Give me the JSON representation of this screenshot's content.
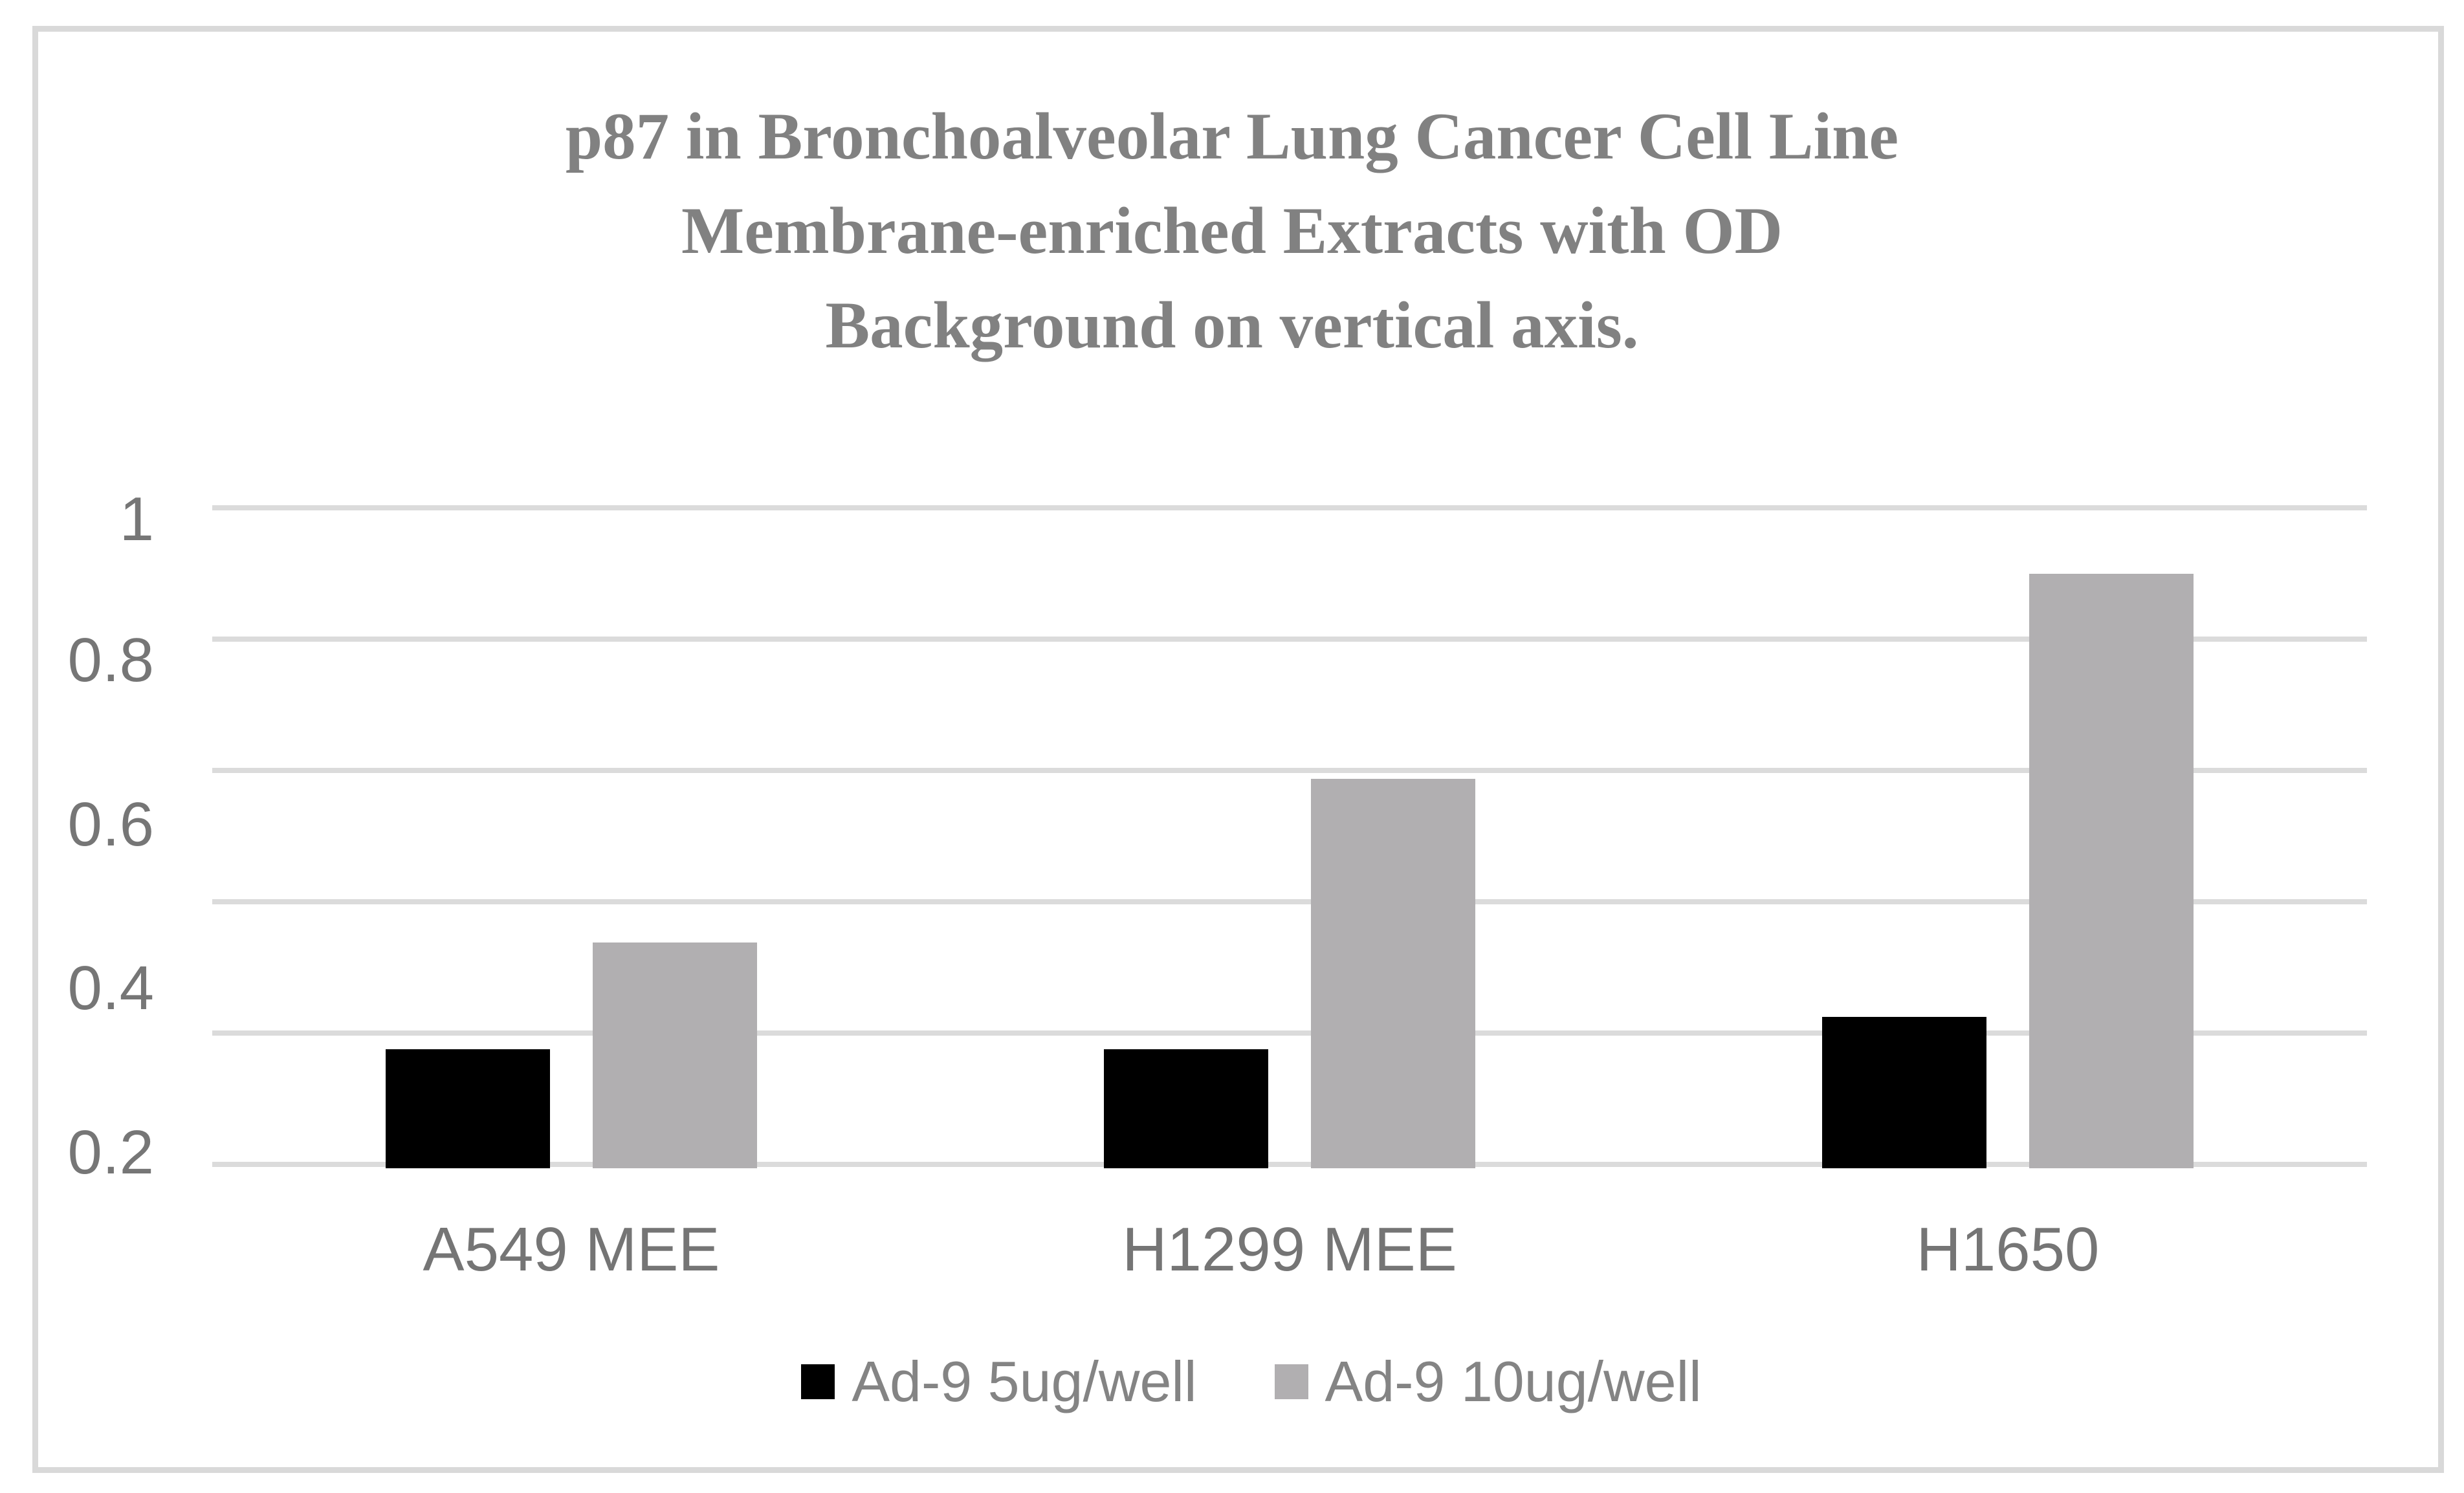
{
  "figure": {
    "frame_color": "#d9d9d9",
    "background": "#ffffff"
  },
  "title": {
    "lines": [
      "p87 in Bronchoalveolar Lung Cancer Cell Line",
      "Membrane-enriched Extracts with OD",
      "Background on vertical axis."
    ],
    "color": "#818181"
  },
  "chart_data": {
    "type": "bar",
    "title": "p87 in Bronchoalveolar Lung Cancer Cell Line Membrane-enriched Extracts with OD Background on vertical axis.",
    "categories": [
      "A549 MEE",
      "H1299 MEE",
      "H1650"
    ],
    "series": [
      {
        "name": "Ad-9 5ug/well",
        "color": "#000000",
        "values": [
          0.34,
          0.34,
          0.38
        ]
      },
      {
        "name": "Ad-9 10ug/well",
        "color": "#b1afb1",
        "values": [
          0.47,
          0.67,
          0.92
        ]
      }
    ],
    "xlabel": "",
    "ylabel": "",
    "ylim": [
      0.2,
      1.0
    ],
    "yticks": [
      {
        "label": "1",
        "value": 1.0
      },
      {
        "label": "0.8",
        "value": 0.8
      },
      {
        "label": "0.6",
        "value": 0.6
      },
      {
        "label": "0.4",
        "value": 0.4
      },
      {
        "label": "0.2",
        "value": 0.2
      }
    ],
    "gridline_count": 6,
    "grid": true,
    "legend_position": "bottom"
  },
  "colors": {
    "gridline": "#dbdbdb",
    "tick_text": "#767676",
    "category_text": "#757575",
    "legend_text": "#848484"
  }
}
